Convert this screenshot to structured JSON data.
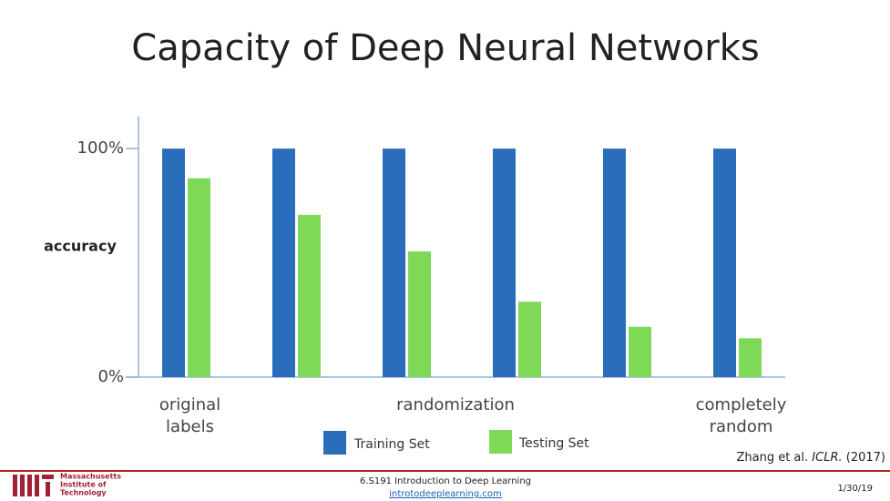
{
  "chart_data": {
    "type": "bar",
    "title": "Capacity of Deep Neural Networks",
    "y_label": "accuracy",
    "categories": [
      "original labels",
      null,
      null,
      null,
      null,
      "completely random"
    ],
    "annotations": [
      "randomization"
    ],
    "series": [
      {
        "name": "Training Set",
        "color": "#2a6ebb",
        "values": [
          100,
          100,
          100,
          100,
          100,
          100
        ]
      },
      {
        "name": "Testing Set",
        "color": "#7ed957",
        "values": [
          87,
          71,
          55,
          33,
          22,
          17
        ]
      }
    ],
    "ylim": [
      0,
      114
    ],
    "yticks": [
      {
        "value": 0,
        "label": "0%"
      },
      {
        "value": 100,
        "label": "100%"
      }
    ],
    "grid": false
  },
  "citation": {
    "authors": "Zhang et al.",
    "venue": "ICLR.",
    "year": "(2017)"
  },
  "footer": {
    "institution": [
      "Massachusetts",
      "Institute of",
      "Technology"
    ],
    "course": "6.S191 Introduction to Deep Learning",
    "link": "introtodeeplearning.com",
    "date": "1/30/19"
  }
}
